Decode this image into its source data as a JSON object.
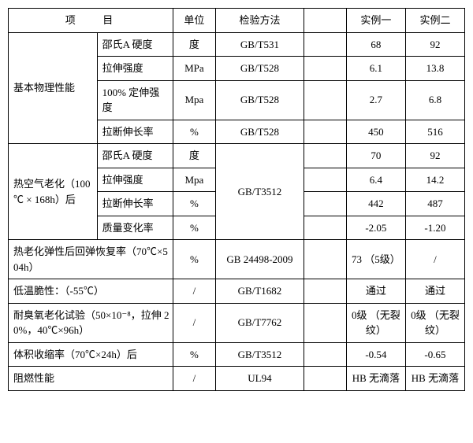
{
  "header": {
    "item": "项 目",
    "unit": "单位",
    "method": "检验方法",
    "blank": "",
    "ex1": "实例一",
    "ex2": "实例二"
  },
  "group1": {
    "label": "基本物理性能",
    "r1": {
      "p": "邵氏A 硬度",
      "u": "度",
      "m": "GB/T531",
      "b": "",
      "e1": "68",
      "e2": "92"
    },
    "r2": {
      "p": "拉伸强度",
      "u": "MPa",
      "m": "GB/T528",
      "b": "",
      "e1": "6.1",
      "e2": "13.8"
    },
    "r3": {
      "p": "100% 定伸强度",
      "u": "Mpa",
      "m": "GB/T528",
      "b": "",
      "e1": "2.7",
      "e2": "6.8"
    },
    "r4": {
      "p": "拉断伸长率",
      "u": "%",
      "m": "GB/T528",
      "b": "",
      "e1": "450",
      "e2": "516"
    }
  },
  "group2": {
    "label": "热空气老化（100 ℃ × 168h）后",
    "method": "GB/T3512",
    "r1": {
      "p": "邵氏A 硬度",
      "u": "度",
      "b": "",
      "e1": "70",
      "e2": "92"
    },
    "r2": {
      "p": "拉伸强度",
      "u": "Mpa",
      "b": "",
      "e1": "6.4",
      "e2": "14.2"
    },
    "r3": {
      "p": "拉断伸长率",
      "u": "%",
      "b": "",
      "e1": "442",
      "e2": "487"
    },
    "r4": {
      "p": "质量变化率",
      "u": "%",
      "b": "",
      "e1": "-2.05",
      "e2": "-1.20"
    }
  },
  "row3": {
    "p": "热老化弹性后回弹恢复率（70℃×504h）",
    "u": "%",
    "m": "GB 24498-2009",
    "b": "",
    "e1": "73 （5级）",
    "e2": "/"
  },
  "row4": {
    "p": "低温脆性：（-55℃）",
    "u": "/",
    "m": "GB/T1682",
    "b": "",
    "e1": "通过",
    "e2": "通过"
  },
  "row5": {
    "p": "耐臭氧老化试验（50×10⁻⁸，拉伸 20%，40℃×96h）",
    "u": "/",
    "m": "GB/T7762",
    "b": "",
    "e1": "0级 （无裂纹）",
    "e2": "0级 （无裂纹）"
  },
  "row6": {
    "p": "体积收缩率（70℃×24h）后",
    "u": "%",
    "m": "GB/T3512",
    "b": "",
    "e1": "-0.54",
    "e2": "-0.65"
  },
  "row7": {
    "p": "阻燃性能",
    "u": "/",
    "m": "UL94",
    "b": "",
    "e1": "HB 无滴落",
    "e2": "HB 无滴落"
  }
}
